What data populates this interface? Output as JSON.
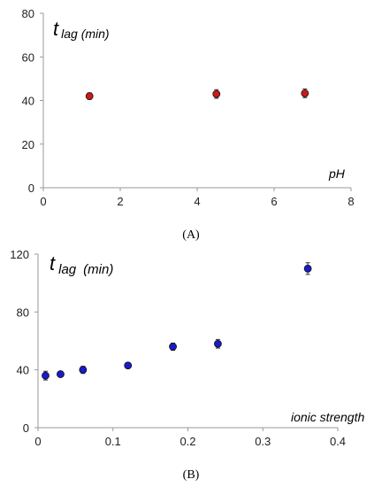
{
  "chart_data": [
    {
      "type": "scatter",
      "panel_label": "(A)",
      "ylabel_main": "t",
      "ylabel_sub": "lag (min)",
      "xlabel": "pH",
      "xlim": [
        0,
        8
      ],
      "ylim": [
        0,
        80
      ],
      "xticks": [
        0,
        2,
        4,
        6,
        8
      ],
      "yticks": [
        0,
        20,
        40,
        60,
        80
      ],
      "marker_color": "#cc1a1a",
      "points": [
        {
          "x": 1.2,
          "y": 42,
          "err": 1.5
        },
        {
          "x": 4.5,
          "y": 43,
          "err": 2
        },
        {
          "x": 6.8,
          "y": 43.3,
          "err": 2
        }
      ]
    },
    {
      "type": "scatter",
      "panel_label": "(B)",
      "ylabel_main": "t",
      "ylabel_sub": "lag",
      "ylabel_unit": "(min)",
      "xlabel": "ionic strength",
      "xlim": [
        0,
        0.4
      ],
      "ylim": [
        0,
        120
      ],
      "xticks": [
        0,
        0.1,
        0.2,
        0.3,
        0.4
      ],
      "yticks": [
        0,
        40,
        80,
        120
      ],
      "marker_color": "#1a1acc",
      "points": [
        {
          "x": 0.01,
          "y": 36,
          "err": 3
        },
        {
          "x": 0.03,
          "y": 37,
          "err": 1.5
        },
        {
          "x": 0.06,
          "y": 40,
          "err": 2.5
        },
        {
          "x": 0.12,
          "y": 43,
          "err": 1.5
        },
        {
          "x": 0.18,
          "y": 56,
          "err": 2.5
        },
        {
          "x": 0.24,
          "y": 58,
          "err": 3
        },
        {
          "x": 0.36,
          "y": 110,
          "err": 4
        }
      ]
    }
  ]
}
